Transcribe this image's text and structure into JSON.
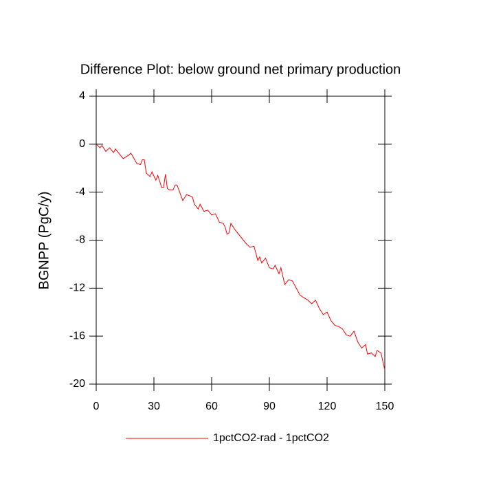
{
  "chart_data": {
    "type": "line",
    "title": "Difference Plot: below ground net primary production",
    "y_label": "BGNPP  (PgC/y)",
    "x": [
      0,
      2,
      3,
      5,
      7,
      9,
      10,
      12,
      14,
      17,
      18,
      19,
      21,
      23,
      24,
      25,
      26,
      28,
      29,
      31,
      32,
      34,
      35,
      36,
      37,
      38,
      40,
      41,
      42,
      45,
      47,
      50,
      51,
      53,
      54,
      56,
      58,
      60,
      62,
      64,
      66,
      67,
      68,
      69,
      70,
      72,
      74,
      76,
      78,
      80,
      82,
      84,
      85,
      86,
      88,
      90,
      92,
      93,
      95,
      96,
      98,
      100,
      102,
      104,
      106,
      108,
      110,
      112,
      114,
      116,
      118,
      120,
      122,
      124,
      126,
      128,
      130,
      132,
      134,
      136,
      138,
      140,
      141,
      143,
      145,
      146,
      148,
      149,
      150
    ],
    "series": [
      {
        "name": "1pctCO2-rad - 1pctCO2",
        "color": "#ff0000",
        "values": [
          0,
          -0.3,
          -0.1,
          -0.6,
          -0.3,
          -0.7,
          -0.4,
          -0.8,
          -1.2,
          -0.9,
          -0.75,
          -1.0,
          -1.6,
          -1.7,
          -1.3,
          -1.3,
          -2.4,
          -2.7,
          -2.3,
          -3.0,
          -2.6,
          -3.6,
          -3.6,
          -2.5,
          -3.7,
          -3.8,
          -3.8,
          -3.4,
          -3.4,
          -4.7,
          -4.2,
          -4.4,
          -5.0,
          -5.4,
          -5.0,
          -5.6,
          -5.5,
          -5.9,
          -5.8,
          -6.5,
          -6.6,
          -6.9,
          -7.5,
          -7.4,
          -6.6,
          -7.1,
          -7.5,
          -7.9,
          -8.3,
          -8.6,
          -8.5,
          -9.7,
          -9.4,
          -9.9,
          -9.5,
          -10.3,
          -10.4,
          -10.1,
          -10.8,
          -10.3,
          -11.7,
          -11.3,
          -11.4,
          -12.0,
          -12.6,
          -12.8,
          -13.0,
          -13.3,
          -13.0,
          -13.7,
          -14.2,
          -14.0,
          -14.7,
          -15.1,
          -15.2,
          -15.4,
          -15.9,
          -16.0,
          -15.6,
          -16.5,
          -17.0,
          -16.7,
          -17.5,
          -17.4,
          -17.7,
          -17.2,
          -17.4,
          -18.1,
          -18.8
        ]
      }
    ],
    "xlim": [
      0,
      150
    ],
    "xticks": [
      0,
      30,
      60,
      90,
      120,
      150
    ],
    "ylim": [
      -20,
      4
    ],
    "yticks": [
      4,
      0,
      -4,
      -8,
      -12,
      -16,
      -20
    ],
    "legend": "bottom"
  }
}
